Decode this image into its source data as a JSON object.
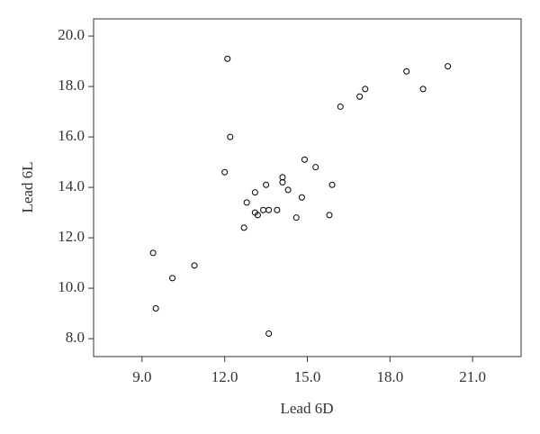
{
  "chart_data": {
    "type": "scatter",
    "x_label": "Lead 6D",
    "y_label": "Lead 6L",
    "x": [
      12.1,
      12.2,
      12.0,
      12.8,
      13.1,
      13.5,
      14.1,
      14.1,
      14.3,
      14.9,
      15.3,
      15.9,
      14.8,
      13.1,
      13.2,
      13.4,
      13.6,
      13.9,
      14.6,
      15.8,
      12.7,
      13.6,
      9.4,
      10.9,
      10.1,
      9.5,
      16.2,
      16.9,
      17.1,
      18.6,
      19.2,
      20.1
    ],
    "values": [
      19.1,
      16.0,
      14.6,
      13.4,
      13.8,
      14.1,
      14.4,
      14.2,
      13.9,
      15.1,
      14.8,
      14.1,
      13.6,
      13.0,
      12.9,
      13.1,
      13.1,
      13.1,
      12.8,
      12.9,
      12.4,
      8.2,
      11.4,
      10.9,
      10.4,
      9.2,
      17.2,
      17.6,
      17.9,
      18.6,
      17.9,
      18.8
    ],
    "color": "#000000",
    "xlim": [
      7.24,
      22.76
    ],
    "ylim": [
      7.29,
      20.68
    ],
    "xticks": [
      {
        "value": 9,
        "label": "9.0"
      },
      {
        "value": 12,
        "label": "12.0"
      },
      {
        "value": 15,
        "label": "15.0"
      },
      {
        "value": 18,
        "label": "18.0"
      },
      {
        "value": 21,
        "label": "21.0"
      }
    ],
    "yticks": [
      {
        "value": 8,
        "label": "8.0"
      },
      {
        "value": 10,
        "label": "10.0"
      },
      {
        "value": 12,
        "label": "12.0"
      },
      {
        "value": 14,
        "label": "14.0"
      },
      {
        "value": 16,
        "label": "16.0"
      },
      {
        "value": 18,
        "label": "18.0"
      },
      {
        "value": 20,
        "label": "20.0"
      }
    ]
  }
}
